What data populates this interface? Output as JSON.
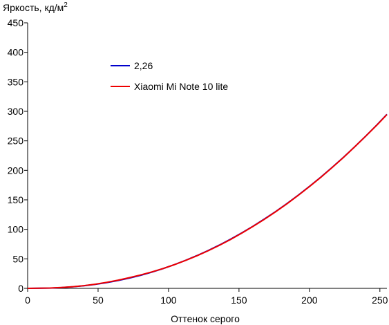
{
  "chart_data": {
    "type": "line",
    "ylabel": "Яркость, кд/м",
    "ylabel_sup": "2",
    "xlabel": "Оттенок серого",
    "xlim": [
      0,
      255
    ],
    "ylim": [
      0,
      450
    ],
    "x_ticks": [
      0,
      50,
      100,
      150,
      200,
      250
    ],
    "y_ticks": [
      0,
      50,
      100,
      150,
      200,
      250,
      300,
      350,
      400,
      450
    ],
    "grid": false,
    "legend_position": "upper-left",
    "series": [
      {
        "name": "2,26",
        "color": "#0000cc",
        "x": [
          0,
          16,
          24,
          32,
          40,
          48,
          56,
          64,
          72,
          80,
          88,
          96,
          104,
          112,
          120,
          128,
          136,
          144,
          152,
          160,
          168,
          176,
          184,
          192,
          200,
          208,
          216,
          224,
          232,
          240,
          248,
          255
        ],
        "y": [
          0,
          0.5,
          1.3,
          2.6,
          4.4,
          6.7,
          9.7,
          13.2,
          17.3,
          22.0,
          27.4,
          33.4,
          40.1,
          47.4,
          55.4,
          64.0,
          73.3,
          83.3,
          94.0,
          105.4,
          117.5,
          130.2,
          143.7,
          157.9,
          172.8,
          188.4,
          204.8,
          221.8,
          239.6,
          258.1,
          277.4,
          294.9
        ]
      },
      {
        "name": "Xiaomi Mi Note 10 lite",
        "color": "#ee0000",
        "x": [
          0,
          16,
          24,
          32,
          40,
          48,
          56,
          64,
          72,
          80,
          88,
          96,
          104,
          112,
          120,
          128,
          136,
          144,
          152,
          160,
          168,
          176,
          184,
          192,
          200,
          208,
          216,
          224,
          232,
          240,
          248,
          255
        ],
        "y": [
          0,
          0.6,
          1.5,
          2.8,
          4.6,
          7.0,
          10.2,
          13.8,
          18.0,
          22.6,
          27.8,
          33.5,
          40.0,
          47.2,
          55.0,
          63.6,
          72.8,
          82.8,
          93.6,
          105.0,
          117.0,
          129.8,
          143.2,
          157.5,
          172.5,
          188.0,
          204.5,
          221.5,
          239.5,
          258.0,
          277.0,
          294.5
        ]
      }
    ]
  }
}
